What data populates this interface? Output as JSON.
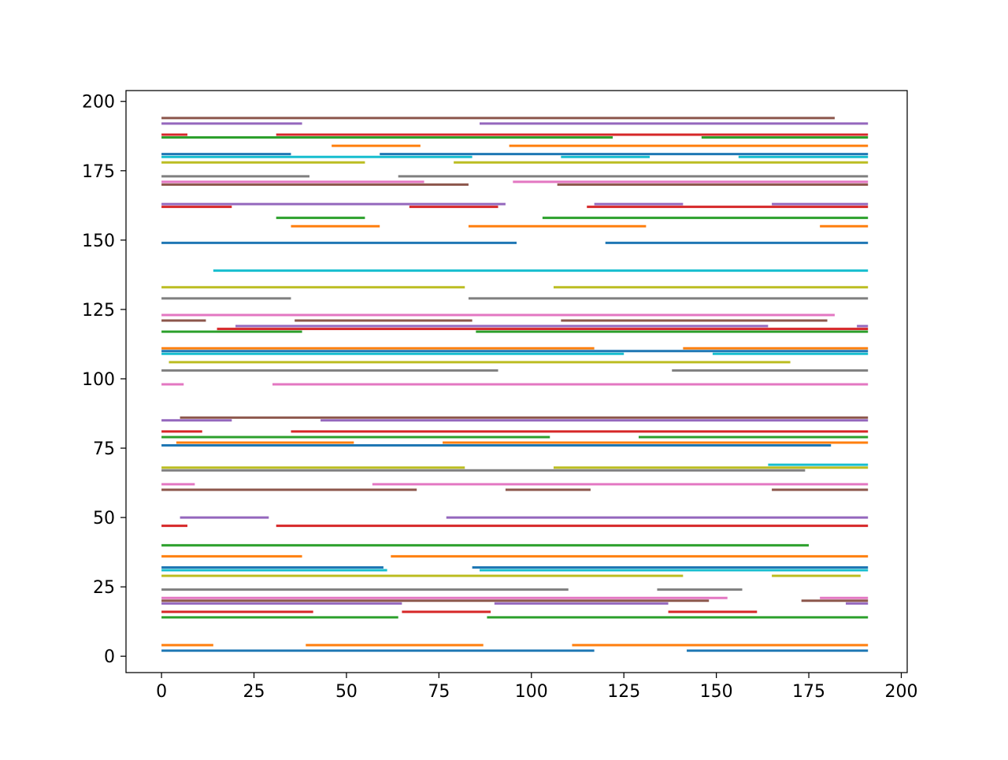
{
  "chart_data": {
    "type": "line",
    "title": "",
    "xlabel": "",
    "ylabel": "",
    "xlim": [
      -9.6,
      201.6
    ],
    "ylim": [
      -5.9,
      203.9
    ],
    "x_ticks": [
      0,
      25,
      50,
      75,
      100,
      125,
      150,
      175,
      200
    ],
    "y_ticks": [
      0,
      25,
      50,
      75,
      100,
      125,
      150,
      175,
      200
    ],
    "x_tick_labels": [
      "0",
      "25",
      "50",
      "75",
      "100",
      "125",
      "150",
      "175",
      "200"
    ],
    "y_tick_labels": [
      "0",
      "25",
      "50",
      "75",
      "100",
      "125",
      "150",
      "175",
      "200"
    ],
    "grid": false,
    "legend": "none",
    "palette": {
      "blue": "#1f77b4",
      "orange": "#ff7f0e",
      "green": "#2ca02c",
      "red": "#d62728",
      "purple": "#9467bd",
      "brown": "#8c564b",
      "pink": "#e377c2",
      "gray": "#7f7f7f",
      "olive": "#bcbd22",
      "cyan": "#17becf"
    },
    "segments": [
      {
        "y": 2,
        "x": [
          0,
          117
        ],
        "color": "#1f77b4"
      },
      {
        "y": 2,
        "x": [
          142,
          191
        ],
        "color": "#1f77b4"
      },
      {
        "y": 4,
        "x": [
          0,
          14
        ],
        "color": "#ff7f0e"
      },
      {
        "y": 4,
        "x": [
          39,
          87
        ],
        "color": "#ff7f0e"
      },
      {
        "y": 4,
        "x": [
          111,
          191
        ],
        "color": "#ff7f0e"
      },
      {
        "y": 14,
        "x": [
          0,
          64
        ],
        "color": "#2ca02c"
      },
      {
        "y": 14,
        "x": [
          88,
          191
        ],
        "color": "#2ca02c"
      },
      {
        "y": 16,
        "x": [
          0,
          41
        ],
        "color": "#d62728"
      },
      {
        "y": 16,
        "x": [
          65,
          89
        ],
        "color": "#d62728"
      },
      {
        "y": 16,
        "x": [
          137,
          161
        ],
        "color": "#d62728"
      },
      {
        "y": 19,
        "x": [
          0,
          65
        ],
        "color": "#9467bd"
      },
      {
        "y": 19,
        "x": [
          90,
          137
        ],
        "color": "#9467bd"
      },
      {
        "y": 19,
        "x": [
          185,
          191
        ],
        "color": "#9467bd"
      },
      {
        "y": 20,
        "x": [
          0,
          148
        ],
        "color": "#8c564b"
      },
      {
        "y": 20,
        "x": [
          173,
          191
        ],
        "color": "#8c564b"
      },
      {
        "y": 21,
        "x": [
          0,
          153
        ],
        "color": "#e377c2"
      },
      {
        "y": 21,
        "x": [
          178,
          191
        ],
        "color": "#e377c2"
      },
      {
        "y": 24,
        "x": [
          0,
          110
        ],
        "color": "#7f7f7f"
      },
      {
        "y": 24,
        "x": [
          134,
          157
        ],
        "color": "#7f7f7f"
      },
      {
        "y": 29,
        "x": [
          0,
          141
        ],
        "color": "#bcbd22"
      },
      {
        "y": 29,
        "x": [
          165,
          189
        ],
        "color": "#bcbd22"
      },
      {
        "y": 31,
        "x": [
          0,
          61
        ],
        "color": "#17becf"
      },
      {
        "y": 31,
        "x": [
          86,
          191
        ],
        "color": "#17becf"
      },
      {
        "y": 32,
        "x": [
          0,
          60
        ],
        "color": "#1f77b4"
      },
      {
        "y": 32,
        "x": [
          84,
          191
        ],
        "color": "#1f77b4"
      },
      {
        "y": 36,
        "x": [
          0,
          38
        ],
        "color": "#ff7f0e"
      },
      {
        "y": 36,
        "x": [
          62,
          191
        ],
        "color": "#ff7f0e"
      },
      {
        "y": 40,
        "x": [
          0,
          175
        ],
        "color": "#2ca02c"
      },
      {
        "y": 47,
        "x": [
          0,
          7
        ],
        "color": "#d62728"
      },
      {
        "y": 47,
        "x": [
          31,
          191
        ],
        "color": "#d62728"
      },
      {
        "y": 50,
        "x": [
          5,
          29
        ],
        "color": "#9467bd"
      },
      {
        "y": 50,
        "x": [
          77,
          191
        ],
        "color": "#9467bd"
      },
      {
        "y": 60,
        "x": [
          0,
          69
        ],
        "color": "#8c564b"
      },
      {
        "y": 60,
        "x": [
          93,
          116
        ],
        "color": "#8c564b"
      },
      {
        "y": 60,
        "x": [
          165,
          191
        ],
        "color": "#8c564b"
      },
      {
        "y": 62,
        "x": [
          0,
          9
        ],
        "color": "#e377c2"
      },
      {
        "y": 62,
        "x": [
          57,
          191
        ],
        "color": "#e377c2"
      },
      {
        "y": 67,
        "x": [
          0,
          174
        ],
        "color": "#7f7f7f"
      },
      {
        "y": 68,
        "x": [
          0,
          82
        ],
        "color": "#bcbd22"
      },
      {
        "y": 68,
        "x": [
          106,
          191
        ],
        "color": "#bcbd22"
      },
      {
        "y": 69,
        "x": [
          164,
          191
        ],
        "color": "#17becf"
      },
      {
        "y": 76,
        "x": [
          0,
          181
        ],
        "color": "#1f77b4"
      },
      {
        "y": 77,
        "x": [
          4,
          52
        ],
        "color": "#ff7f0e"
      },
      {
        "y": 77,
        "x": [
          76,
          191
        ],
        "color": "#ff7f0e"
      },
      {
        "y": 79,
        "x": [
          0,
          105
        ],
        "color": "#2ca02c"
      },
      {
        "y": 79,
        "x": [
          129,
          191
        ],
        "color": "#2ca02c"
      },
      {
        "y": 81,
        "x": [
          0,
          11
        ],
        "color": "#d62728"
      },
      {
        "y": 81,
        "x": [
          35,
          191
        ],
        "color": "#d62728"
      },
      {
        "y": 85,
        "x": [
          0,
          19
        ],
        "color": "#9467bd"
      },
      {
        "y": 85,
        "x": [
          43,
          191
        ],
        "color": "#9467bd"
      },
      {
        "y": 86,
        "x": [
          5,
          191
        ],
        "color": "#8c564b"
      },
      {
        "y": 98,
        "x": [
          0,
          6
        ],
        "color": "#e377c2"
      },
      {
        "y": 98,
        "x": [
          30,
          191
        ],
        "color": "#e377c2"
      },
      {
        "y": 103,
        "x": [
          0,
          91
        ],
        "color": "#7f7f7f"
      },
      {
        "y": 103,
        "x": [
          138,
          191
        ],
        "color": "#7f7f7f"
      },
      {
        "y": 106,
        "x": [
          2,
          170
        ],
        "color": "#bcbd22"
      },
      {
        "y": 109,
        "x": [
          0,
          125
        ],
        "color": "#17becf"
      },
      {
        "y": 109,
        "x": [
          149,
          191
        ],
        "color": "#17becf"
      },
      {
        "y": 110,
        "x": [
          0,
          191
        ],
        "color": "#1f77b4"
      },
      {
        "y": 111,
        "x": [
          0,
          117
        ],
        "color": "#ff7f0e"
      },
      {
        "y": 111,
        "x": [
          141,
          191
        ],
        "color": "#ff7f0e"
      },
      {
        "y": 117,
        "x": [
          0,
          38
        ],
        "color": "#2ca02c"
      },
      {
        "y": 117,
        "x": [
          85,
          191
        ],
        "color": "#2ca02c"
      },
      {
        "y": 118,
        "x": [
          15,
          191
        ],
        "color": "#d62728"
      },
      {
        "y": 119,
        "x": [
          20,
          164
        ],
        "color": "#9467bd"
      },
      {
        "y": 119,
        "x": [
          188,
          191
        ],
        "color": "#9467bd"
      },
      {
        "y": 121,
        "x": [
          0,
          12
        ],
        "color": "#8c564b"
      },
      {
        "y": 121,
        "x": [
          36,
          84
        ],
        "color": "#8c564b"
      },
      {
        "y": 121,
        "x": [
          108,
          180
        ],
        "color": "#8c564b"
      },
      {
        "y": 123,
        "x": [
          0,
          182
        ],
        "color": "#e377c2"
      },
      {
        "y": 129,
        "x": [
          0,
          35
        ],
        "color": "#7f7f7f"
      },
      {
        "y": 129,
        "x": [
          83,
          191
        ],
        "color": "#7f7f7f"
      },
      {
        "y": 133,
        "x": [
          0,
          82
        ],
        "color": "#bcbd22"
      },
      {
        "y": 133,
        "x": [
          106,
          191
        ],
        "color": "#bcbd22"
      },
      {
        "y": 139,
        "x": [
          14,
          191
        ],
        "color": "#17becf"
      },
      {
        "y": 149,
        "x": [
          0,
          96
        ],
        "color": "#1f77b4"
      },
      {
        "y": 149,
        "x": [
          120,
          191
        ],
        "color": "#1f77b4"
      },
      {
        "y": 155,
        "x": [
          35,
          59
        ],
        "color": "#ff7f0e"
      },
      {
        "y": 155,
        "x": [
          83,
          131
        ],
        "color": "#ff7f0e"
      },
      {
        "y": 155,
        "x": [
          178,
          191
        ],
        "color": "#ff7f0e"
      },
      {
        "y": 158,
        "x": [
          31,
          55
        ],
        "color": "#2ca02c"
      },
      {
        "y": 158,
        "x": [
          103,
          191
        ],
        "color": "#2ca02c"
      },
      {
        "y": 162,
        "x": [
          0,
          19
        ],
        "color": "#d62728"
      },
      {
        "y": 162,
        "x": [
          67,
          91
        ],
        "color": "#d62728"
      },
      {
        "y": 162,
        "x": [
          115,
          191
        ],
        "color": "#d62728"
      },
      {
        "y": 163,
        "x": [
          0,
          93
        ],
        "color": "#9467bd"
      },
      {
        "y": 163,
        "x": [
          117,
          141
        ],
        "color": "#9467bd"
      },
      {
        "y": 163,
        "x": [
          165,
          191
        ],
        "color": "#9467bd"
      },
      {
        "y": 170,
        "x": [
          0,
          83
        ],
        "color": "#8c564b"
      },
      {
        "y": 170,
        "x": [
          107,
          191
        ],
        "color": "#8c564b"
      },
      {
        "y": 171,
        "x": [
          0,
          71
        ],
        "color": "#e377c2"
      },
      {
        "y": 171,
        "x": [
          95,
          191
        ],
        "color": "#e377c2"
      },
      {
        "y": 173,
        "x": [
          0,
          40
        ],
        "color": "#7f7f7f"
      },
      {
        "y": 173,
        "x": [
          64,
          191
        ],
        "color": "#7f7f7f"
      },
      {
        "y": 178,
        "x": [
          0,
          55
        ],
        "color": "#bcbd22"
      },
      {
        "y": 178,
        "x": [
          79,
          191
        ],
        "color": "#bcbd22"
      },
      {
        "y": 180,
        "x": [
          0,
          84
        ],
        "color": "#17becf"
      },
      {
        "y": 180,
        "x": [
          108,
          132
        ],
        "color": "#17becf"
      },
      {
        "y": 180,
        "x": [
          156,
          191
        ],
        "color": "#17becf"
      },
      {
        "y": 181,
        "x": [
          0,
          35
        ],
        "color": "#1f77b4"
      },
      {
        "y": 181,
        "x": [
          59,
          191
        ],
        "color": "#1f77b4"
      },
      {
        "y": 184,
        "x": [
          46,
          70
        ],
        "color": "#ff7f0e"
      },
      {
        "y": 184,
        "x": [
          94,
          191
        ],
        "color": "#ff7f0e"
      },
      {
        "y": 187,
        "x": [
          0,
          122
        ],
        "color": "#2ca02c"
      },
      {
        "y": 187,
        "x": [
          146,
          191
        ],
        "color": "#2ca02c"
      },
      {
        "y": 188,
        "x": [
          0,
          7
        ],
        "color": "#d62728"
      },
      {
        "y": 188,
        "x": [
          31,
          191
        ],
        "color": "#d62728"
      },
      {
        "y": 192,
        "x": [
          0,
          38
        ],
        "color": "#9467bd"
      },
      {
        "y": 192,
        "x": [
          86,
          191
        ],
        "color": "#9467bd"
      },
      {
        "y": 194,
        "x": [
          0,
          182
        ],
        "color": "#8c564b"
      }
    ]
  }
}
